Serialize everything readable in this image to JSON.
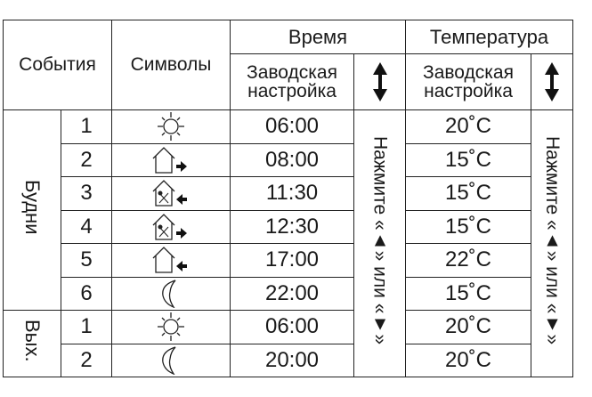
{
  "header": {
    "events": "События",
    "symbols": "Символы",
    "time": "Время",
    "temperature": "Температура",
    "factory_line1": "Заводская",
    "factory_line2": "настройка",
    "updown_icon": "up-down-arrow-icon"
  },
  "groups": {
    "weekdays": "Будни",
    "weekend": "Вых."
  },
  "press_hint": "Нажмите «▲» или «▼»",
  "rows": [
    {
      "n": "1",
      "icon": "sun",
      "time": "06:00",
      "temp": "20˚C"
    },
    {
      "n": "2",
      "icon": "house-leave",
      "time": "08:00",
      "temp": "15˚C"
    },
    {
      "n": "3",
      "icon": "house-meal-return",
      "time": "11:30",
      "temp": "15˚C"
    },
    {
      "n": "4",
      "icon": "house-meal-leave",
      "time": "12:30",
      "temp": "15˚C"
    },
    {
      "n": "5",
      "icon": "house-return",
      "time": "17:00",
      "temp": "22˚C"
    },
    {
      "n": "6",
      "icon": "moon",
      "time": "22:00",
      "temp": "15˚C"
    },
    {
      "n": "1",
      "icon": "sun",
      "time": "06:00",
      "temp": "20˚C"
    },
    {
      "n": "2",
      "icon": "moon",
      "time": "20:00",
      "temp": "20˚C"
    }
  ]
}
